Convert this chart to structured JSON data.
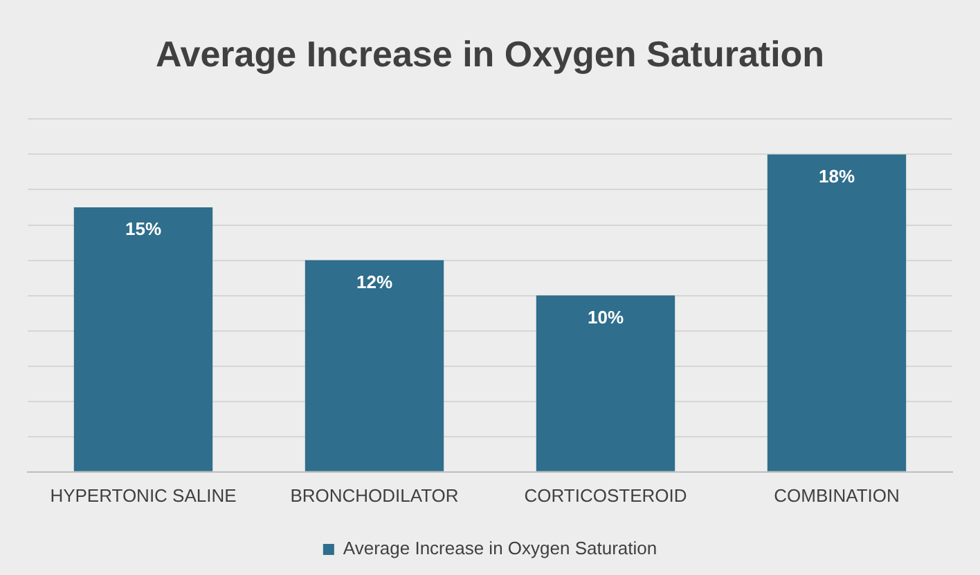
{
  "chart_data": {
    "type": "bar",
    "title": "Average Increase in Oxygen Saturation",
    "categories": [
      "HYPERTONIC SALINE",
      "BRONCHODILATOR",
      "CORTICOSTEROID",
      "COMBINATION"
    ],
    "series": [
      {
        "name": "Average Increase in Oxygen Saturation",
        "color": "#2f6e8c",
        "values": [
          15,
          12,
          10,
          18
        ],
        "value_labels": [
          "15%",
          "12%",
          "10%",
          "18%"
        ]
      }
    ],
    "ylim": [
      0,
      20
    ],
    "yticks": [
      {
        "value": 0,
        "label": null
      },
      {
        "value": 2,
        "label": null
      },
      {
        "value": 4,
        "label": null
      },
      {
        "value": 6,
        "label": null
      },
      {
        "value": 8,
        "label": null
      },
      {
        "value": 10,
        "label": null
      },
      {
        "value": 12,
        "label": null
      },
      {
        "value": 14,
        "label": null
      },
      {
        "value": 16,
        "label": null
      },
      {
        "value": 18,
        "label": null
      },
      {
        "value": 20,
        "label": null
      }
    ],
    "grid": "y",
    "legend": "bottom",
    "tick_labels": "x"
  }
}
